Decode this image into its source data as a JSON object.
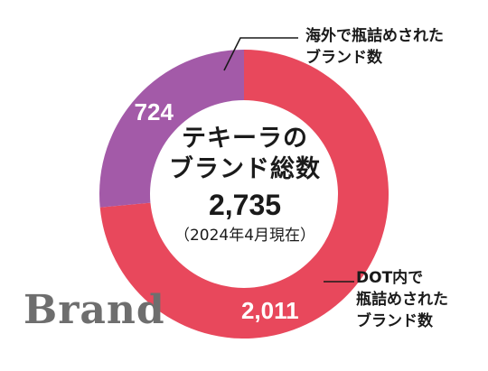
{
  "chart_data": {
    "type": "pie",
    "categories": [
      "DOT内で瓶詰めされたブランド数",
      "海外で瓶詰めされたブランド数"
    ],
    "values": [
      2011,
      724
    ],
    "colors": [
      "#e8485c",
      "#a35aa8"
    ],
    "value_labels": [
      "2,011",
      "724"
    ],
    "annotations": {
      "dot": [
        "DOT内で",
        "瓶詰めされた",
        "ブランド数"
      ],
      "overseas": [
        "海外で瓶詰めされた",
        "ブランド数"
      ]
    },
    "center": {
      "title_lines": [
        "テキーラの",
        "ブランド総数"
      ],
      "total": "2,735",
      "note": "（2024年4月現在）"
    }
  },
  "watermark": "Brand"
}
